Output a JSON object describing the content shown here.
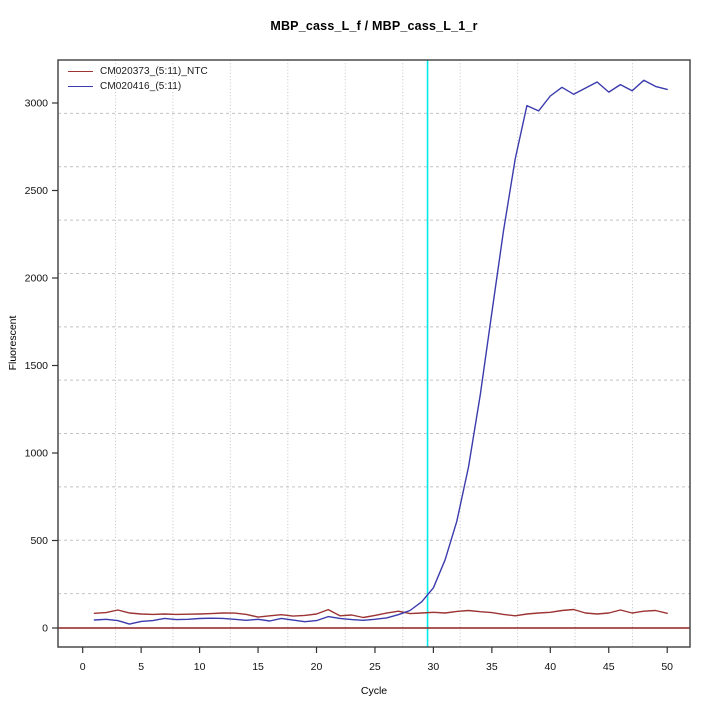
{
  "window": {
    "background": "#ffffff",
    "kind": "qPCR amplification plot"
  },
  "chart_data": {
    "type": "line",
    "title": "MBP_cass_L_f / MBP_cass_L_1_r",
    "xlabel": "Cycle",
    "ylabel": "Fluorescent",
    "x_ticks": [
      0,
      5,
      10,
      15,
      20,
      25,
      30,
      35,
      40,
      45,
      50
    ],
    "y_ticks": [
      0,
      500,
      1000,
      1500,
      2000,
      2500,
      3000
    ],
    "xlim": [
      -2.1,
      52
    ],
    "ylim": [
      -110,
      3270
    ],
    "grid": {
      "on": true,
      "style": "light gray, vertical dotted / horizontal dashed, 10 internal lines each way"
    },
    "legend_position": "top-left",
    "x": [
      1,
      2,
      3,
      4,
      5,
      6,
      7,
      8,
      9,
      10,
      11,
      12,
      13,
      14,
      15,
      16,
      17,
      18,
      19,
      20,
      21,
      22,
      23,
      24,
      25,
      26,
      27,
      28,
      29,
      30,
      31,
      32,
      33,
      34,
      35,
      36,
      37,
      38,
      39,
      40,
      41,
      42,
      43,
      44,
      45,
      46,
      47,
      48,
      49,
      50
    ],
    "series": [
      {
        "name": "CM020373_(5:11)_NTC",
        "color": "#9c3434",
        "values": [
          84,
          88,
          103,
          86,
          80,
          78,
          80,
          78,
          79,
          80,
          82,
          86,
          85,
          78,
          62,
          70,
          76,
          68,
          72,
          80,
          105,
          70,
          74,
          60,
          72,
          85,
          96,
          82,
          86,
          90,
          86,
          95,
          100,
          93,
          88,
          78,
          70,
          80,
          86,
          90,
          100,
          106,
          86,
          80,
          86,
          103,
          86,
          96,
          100,
          84
        ]
      },
      {
        "name": "CM020416_(5:11)",
        "color": "#3b3bad",
        "values": [
          46,
          50,
          42,
          22,
          38,
          42,
          55,
          48,
          50,
          54,
          56,
          55,
          50,
          44,
          50,
          40,
          55,
          45,
          36,
          42,
          65,
          55,
          48,
          44,
          50,
          58,
          76,
          100,
          150,
          230,
          390,
          610,
          920,
          1330,
          1800,
          2270,
          2680,
          2985,
          2955,
          3040,
          3090,
          3050,
          3085,
          3120,
          3062,
          3105,
          3070,
          3130,
          3095,
          3078
        ]
      }
    ],
    "threshold_cycle_line": {
      "x": 29.5,
      "color": "#00e8e8"
    },
    "zero_line": {
      "y": 0,
      "color": "#8f2222"
    }
  },
  "colors": {
    "grid": "#c4c4c4",
    "border": "#4a4a4a",
    "tick": "#333333",
    "text": "#111111"
  }
}
